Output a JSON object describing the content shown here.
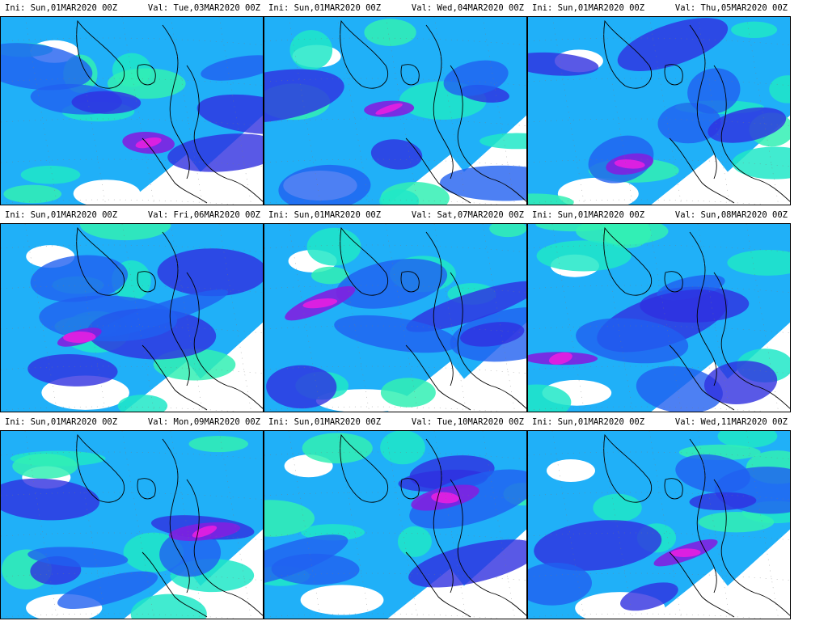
{
  "panels": [
    {
      "ini": "Ini: Sun,01MAR2020 00Z",
      "val": "Val: Tue,03MAR2020 00Z"
    },
    {
      "ini": "Ini: Sun,01MAR2020 00Z",
      "val": "Val: Wed,04MAR2020 00Z"
    },
    {
      "ini": "Ini: Sun,01MAR2020 00Z",
      "val": "Val: Thu,05MAR2020 00Z"
    },
    {
      "ini": "Ini: Sun,01MAR2020 00Z",
      "val": "Val: Fri,06MAR2020 00Z"
    },
    {
      "ini": "Ini: Sun,01MAR2020 00Z",
      "val": "Val: Sat,07MAR2020 00Z"
    },
    {
      "ini": "Ini: Sun,01MAR2020 00Z",
      "val": "Val: Sun,08MAR2020 00Z"
    },
    {
      "ini": "Ini: Sun,01MAR2020 00Z",
      "val": "Val: Mon,09MAR2020 00Z"
    },
    {
      "ini": "Ini: Sun,01MAR2020 00Z",
      "val": "Val: Tue,10MAR2020 00Z"
    },
    {
      "ini": "Ini: Sun,01MAR2020 00Z",
      "val": "Val: Wed,11MAR2020 00Z"
    }
  ],
  "colors": {
    "light_cyan": "#33f0b4",
    "cyan_green": "#20e8c8",
    "sky_blue": "#20b0f8",
    "medium_blue": "#2060f0",
    "dark_blue": "#3030e0",
    "violet": "#8020e0",
    "magenta": "#e020e0",
    "coast": "#000000"
  }
}
